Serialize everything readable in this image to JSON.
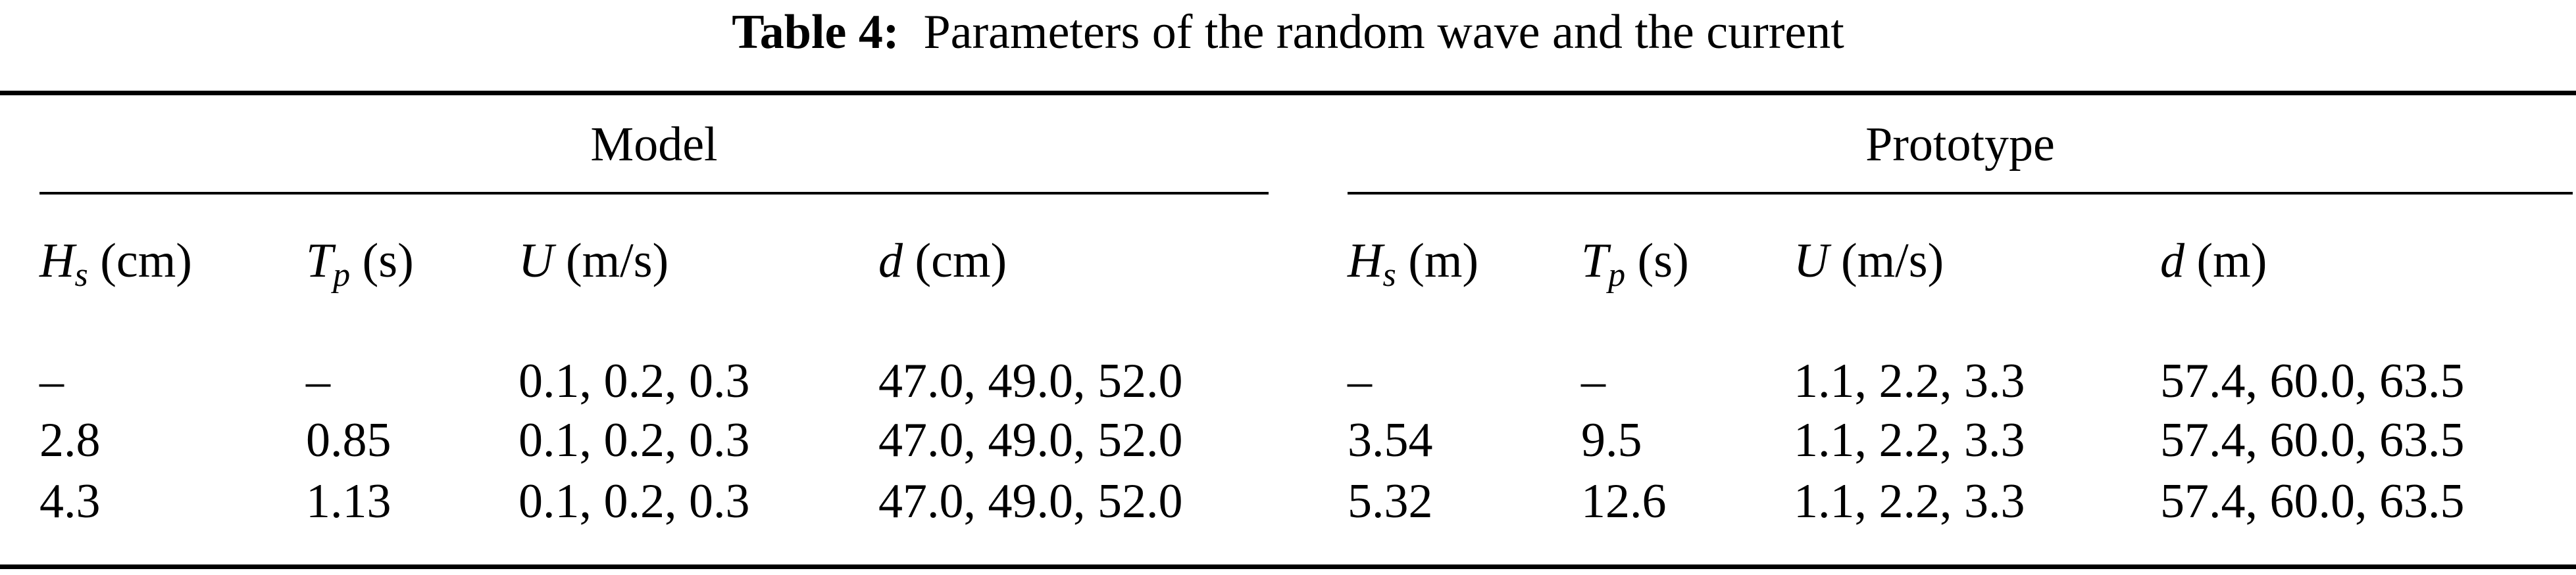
{
  "caption": {
    "label": "Table 4:",
    "text": "Parameters of the random wave and the current"
  },
  "table": {
    "groups": {
      "model": "Model",
      "prototype": "Prototype"
    },
    "headers": [
      {
        "symbol": "H",
        "sub": "s",
        "unit": "(cm)"
      },
      {
        "symbol": "T",
        "sub": "p",
        "unit": "(s)"
      },
      {
        "symbol": "U",
        "sub": "",
        "unit": "(m/s)"
      },
      {
        "symbol": "d",
        "sub": "",
        "unit": "(cm)"
      },
      {
        "symbol": "H",
        "sub": "s",
        "unit": "(m)"
      },
      {
        "symbol": "T",
        "sub": "p",
        "unit": "(s)"
      },
      {
        "symbol": "U",
        "sub": "",
        "unit": "(m/s)"
      },
      {
        "symbol": "d",
        "sub": "",
        "unit": "(m)"
      }
    ],
    "rows": [
      [
        "–",
        "–",
        "0.1, 0.2, 0.3",
        "47.0, 49.0, 52.0",
        "–",
        "–",
        "1.1, 2.2, 3.3",
        "57.4, 60.0, 63.5"
      ],
      [
        "2.8",
        "0.85",
        "0.1, 0.2, 0.3",
        "47.0, 49.0, 52.0",
        "3.54",
        "9.5",
        "1.1, 2.2, 3.3",
        "57.4, 60.0, 63.5"
      ],
      [
        "4.3",
        "1.13",
        "0.1, 0.2, 0.3",
        "47.0, 49.0, 52.0",
        "5.32",
        "12.6",
        "1.1, 2.2, 3.3",
        "57.4, 60.0, 63.5"
      ]
    ]
  }
}
